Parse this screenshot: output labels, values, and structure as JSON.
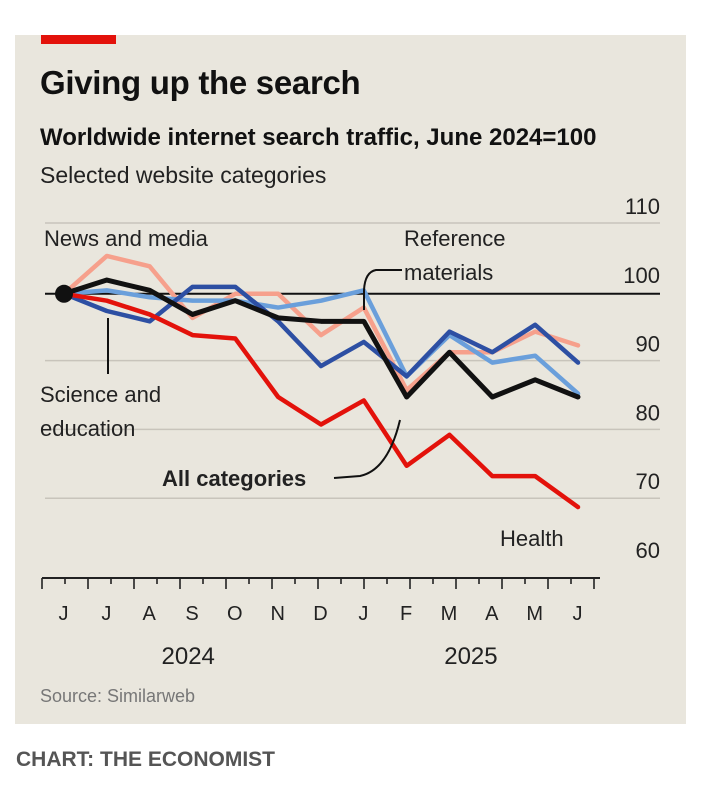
{
  "colors": {
    "accent": "#e3120b",
    "health": "#e3120b",
    "all_categories": "#111111",
    "science_education": "#2d4fa3",
    "reference_materials": "#6a9fdb",
    "news_media": "#f6a08c",
    "card_bg": "#e9e6dd",
    "grid": "#c8c4bb"
  },
  "header": {
    "title": "Giving up the search",
    "subtitle": "Worldwide internet search traffic, June 2024=100",
    "subsubtitle": "Selected website categories"
  },
  "footer": {
    "source": "Source: Similarweb",
    "credit": "CHART: THE ECONOMIST"
  },
  "chart_data": {
    "type": "line",
    "title": "Giving up the search",
    "subtitle": "Worldwide internet search traffic, June 2024=100",
    "x": [
      "J",
      "J",
      "A",
      "S",
      "O",
      "N",
      "D",
      "J",
      "F",
      "M",
      "A",
      "M",
      "J"
    ],
    "x_year_labels": [
      "2024",
      "2025"
    ],
    "ylim": [
      60,
      110
    ],
    "yticks": [
      60,
      70,
      80,
      90,
      100,
      110
    ],
    "y_axis_side": "right",
    "reference_line": 100,
    "grid": "horizontal",
    "series": [
      {
        "name": "News and media",
        "color_key": "news_media",
        "values": [
          100,
          105.5,
          104,
          96.5,
          100,
          100,
          94,
          98,
          86,
          91.5,
          91.5,
          94.5,
          92.5
        ]
      },
      {
        "name": "Reference materials",
        "color_key": "reference_materials",
        "values": [
          100,
          100.5,
          99.5,
          99,
          99,
          98,
          99,
          100.5,
          88,
          94,
          90,
          91,
          85.5
        ]
      },
      {
        "name": "Science and education",
        "color_key": "science_education",
        "values": [
          100,
          97.5,
          96,
          101,
          101,
          96,
          89.5,
          93,
          88,
          94.5,
          91.5,
          95.5,
          90
        ]
      },
      {
        "name": "All categories",
        "color_key": "all_categories",
        "values": [
          100,
          102,
          100.5,
          97,
          99,
          96.5,
          96,
          96,
          85,
          91.5,
          85,
          87.5,
          85
        ]
      },
      {
        "name": "Health",
        "color_key": "health",
        "values": [
          100,
          99,
          97,
          94,
          93.5,
          85,
          81,
          84.5,
          75,
          79.5,
          73.5,
          73.5,
          69
        ]
      }
    ]
  }
}
